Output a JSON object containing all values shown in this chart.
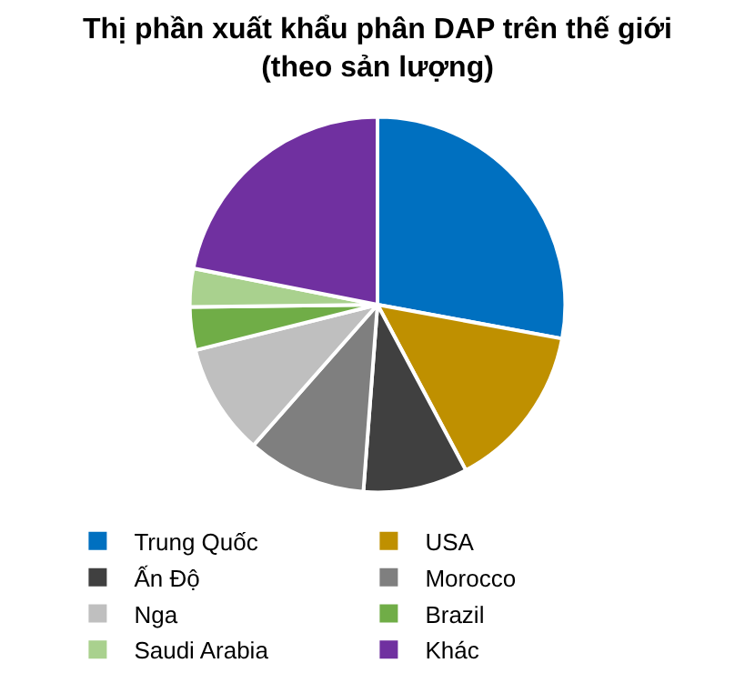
{
  "chart_data": {
    "type": "pie",
    "title": "Thị phần xuất khẩu phân DAP trên thế giới\n(theo sản lượng)",
    "categories": [
      "Trung Quốc",
      "USA",
      "Ấn Độ",
      "Morocco",
      "Nga",
      "Brazil",
      "Saudi Arabia",
      "Khác"
    ],
    "values": [
      27.9,
      14.3,
      9,
      10.3,
      9.6,
      3.7,
      3.3,
      21.9
    ],
    "colors": [
      "#0070c0",
      "#bf9000",
      "#404040",
      "#7f7f7f",
      "#bfbfbf",
      "#70ad47",
      "#a9d18e",
      "#7030a0"
    ],
    "legend": "bottom"
  }
}
